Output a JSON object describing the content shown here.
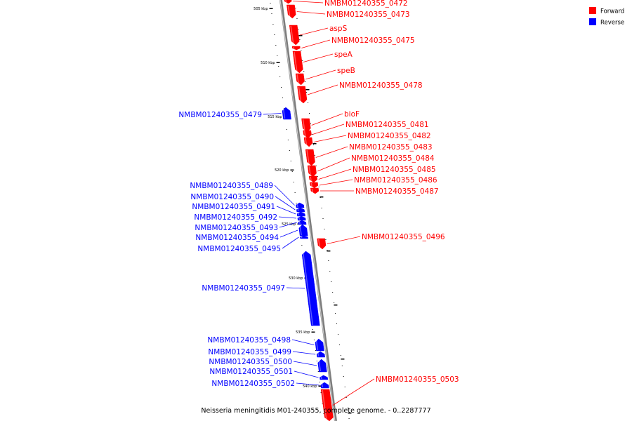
{
  "caption": "Neisseria meningitidis M01-240355, complete genome. - 0..2287777",
  "legend": [
    {
      "label": "Forward",
      "color": "#ff0000"
    },
    {
      "label": "Reverse",
      "color": "#0000ff"
    }
  ],
  "colors": {
    "forward": "#ff0000",
    "reverse": "#0000ff",
    "backbone": "#888888"
  },
  "tick_labels": [
    "505 kbp",
    "510 kbp",
    "515 kbp",
    "520 kbp",
    "525 kbp",
    "530 kbp",
    "535 kbp",
    "540 kbp"
  ],
  "genes": [
    {
      "name": "NMBM01240355_0472",
      "strand": "forward"
    },
    {
      "name": "NMBM01240355_0473",
      "strand": "forward"
    },
    {
      "name": "aspS",
      "strand": "forward"
    },
    {
      "name": "NMBM01240355_0475",
      "strand": "forward"
    },
    {
      "name": "speA",
      "strand": "forward"
    },
    {
      "name": "speB",
      "strand": "forward"
    },
    {
      "name": "NMBM01240355_0478",
      "strand": "forward"
    },
    {
      "name": "NMBM01240355_0479",
      "strand": "reverse"
    },
    {
      "name": "bioF",
      "strand": "forward"
    },
    {
      "name": "NMBM01240355_0481",
      "strand": "forward"
    },
    {
      "name": "NMBM01240355_0482",
      "strand": "forward"
    },
    {
      "name": "NMBM01240355_0483",
      "strand": "forward"
    },
    {
      "name": "NMBM01240355_0484",
      "strand": "forward"
    },
    {
      "name": "NMBM01240355_0485",
      "strand": "forward"
    },
    {
      "name": "NMBM01240355_0486",
      "strand": "forward"
    },
    {
      "name": "NMBM01240355_0487",
      "strand": "forward"
    },
    {
      "name": "NMBM01240355_0489",
      "strand": "reverse"
    },
    {
      "name": "NMBM01240355_0490",
      "strand": "reverse"
    },
    {
      "name": "NMBM01240355_0491",
      "strand": "reverse"
    },
    {
      "name": "NMBM01240355_0492",
      "strand": "reverse"
    },
    {
      "name": "NMBM01240355_0493",
      "strand": "reverse"
    },
    {
      "name": "NMBM01240355_0494",
      "strand": "reverse"
    },
    {
      "name": "NMBM01240355_0495",
      "strand": "reverse"
    },
    {
      "name": "NMBM01240355_0496",
      "strand": "forward"
    },
    {
      "name": "NMBM01240355_0497",
      "strand": "reverse"
    },
    {
      "name": "NMBM01240355_0498",
      "strand": "reverse"
    },
    {
      "name": "NMBM01240355_0499",
      "strand": "reverse"
    },
    {
      "name": "NMBM01240355_0500",
      "strand": "reverse"
    },
    {
      "name": "NMBM01240355_0501",
      "strand": "reverse"
    },
    {
      "name": "NMBM01240355_0502",
      "strand": "reverse"
    },
    {
      "name": "NMBM01240355_0503",
      "strand": "forward"
    }
  ]
}
